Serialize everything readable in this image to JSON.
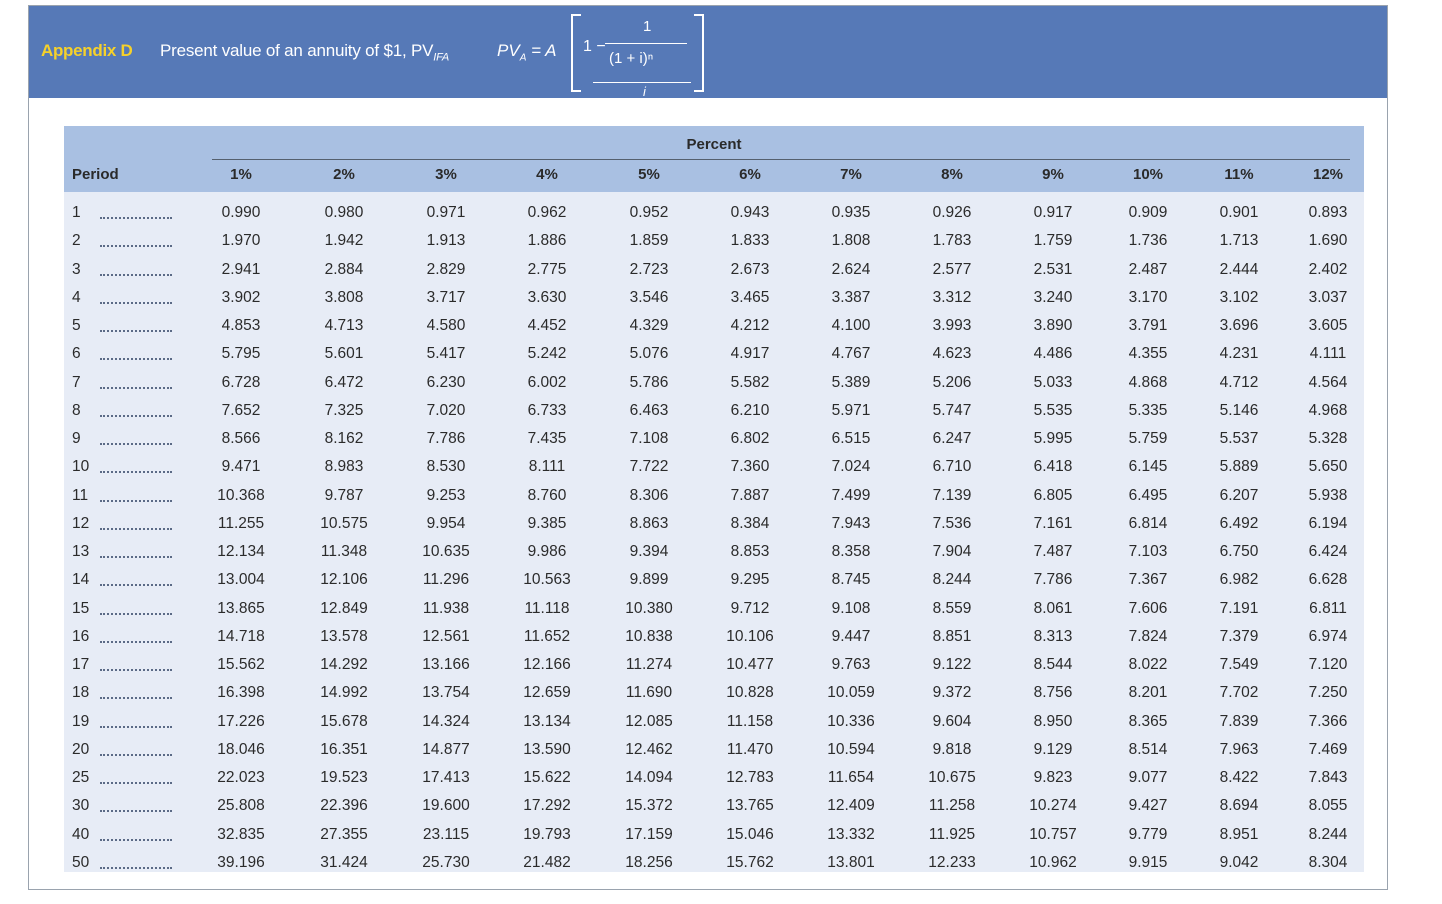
{
  "banner": {
    "label": "Appendix D",
    "title": "Present value of an annuity of $1, PV",
    "title_sub": "IFA",
    "formula": {
      "lhs": "PV",
      "lhs_sub": "A",
      "eq": " = A",
      "one_minus": "1 −",
      "numerator": "1",
      "denominator": "(1 + i)ⁿ",
      "divisor": "i"
    }
  },
  "table": {
    "super_header": "Percent",
    "period_header": "Period",
    "columns": [
      "1%",
      "2%",
      "3%",
      "4%",
      "5%",
      "6%",
      "7%",
      "8%",
      "9%",
      "10%",
      "11%",
      "12%"
    ],
    "rows": [
      {
        "period": "1",
        "values": [
          "0.990",
          "0.980",
          "0.971",
          "0.962",
          "0.952",
          "0.943",
          "0.935",
          "0.926",
          "0.917",
          "0.909",
          "0.901",
          "0.893"
        ]
      },
      {
        "period": "2",
        "values": [
          "1.970",
          "1.942",
          "1.913",
          "1.886",
          "1.859",
          "1.833",
          "1.808",
          "1.783",
          "1.759",
          "1.736",
          "1.713",
          "1.690"
        ]
      },
      {
        "period": "3",
        "values": [
          "2.941",
          "2.884",
          "2.829",
          "2.775",
          "2.723",
          "2.673",
          "2.624",
          "2.577",
          "2.531",
          "2.487",
          "2.444",
          "2.402"
        ]
      },
      {
        "period": "4",
        "values": [
          "3.902",
          "3.808",
          "3.717",
          "3.630",
          "3.546",
          "3.465",
          "3.387",
          "3.312",
          "3.240",
          "3.170",
          "3.102",
          "3.037"
        ]
      },
      {
        "period": "5",
        "values": [
          "4.853",
          "4.713",
          "4.580",
          "4.452",
          "4.329",
          "4.212",
          "4.100",
          "3.993",
          "3.890",
          "3.791",
          "3.696",
          "3.605"
        ]
      },
      {
        "period": "6",
        "values": [
          "5.795",
          "5.601",
          "5.417",
          "5.242",
          "5.076",
          "4.917",
          "4.767",
          "4.623",
          "4.486",
          "4.355",
          "4.231",
          "4.111"
        ]
      },
      {
        "period": "7",
        "values": [
          "6.728",
          "6.472",
          "6.230",
          "6.002",
          "5.786",
          "5.582",
          "5.389",
          "5.206",
          "5.033",
          "4.868",
          "4.712",
          "4.564"
        ]
      },
      {
        "period": "8",
        "values": [
          "7.652",
          "7.325",
          "7.020",
          "6.733",
          "6.463",
          "6.210",
          "5.971",
          "5.747",
          "5.535",
          "5.335",
          "5.146",
          "4.968"
        ]
      },
      {
        "period": "9",
        "values": [
          "8.566",
          "8.162",
          "7.786",
          "7.435",
          "7.108",
          "6.802",
          "6.515",
          "6.247",
          "5.995",
          "5.759",
          "5.537",
          "5.328"
        ]
      },
      {
        "period": "10",
        "values": [
          "9.471",
          "8.983",
          "8.530",
          "8.111",
          "7.722",
          "7.360",
          "7.024",
          "6.710",
          "6.418",
          "6.145",
          "5.889",
          "5.650"
        ]
      },
      {
        "period": "11",
        "values": [
          "10.368",
          "9.787",
          "9.253",
          "8.760",
          "8.306",
          "7.887",
          "7.499",
          "7.139",
          "6.805",
          "6.495",
          "6.207",
          "5.938"
        ]
      },
      {
        "period": "12",
        "values": [
          "11.255",
          "10.575",
          "9.954",
          "9.385",
          "8.863",
          "8.384",
          "7.943",
          "7.536",
          "7.161",
          "6.814",
          "6.492",
          "6.194"
        ]
      },
      {
        "period": "13",
        "values": [
          "12.134",
          "11.348",
          "10.635",
          "9.986",
          "9.394",
          "8.853",
          "8.358",
          "7.904",
          "7.487",
          "7.103",
          "6.750",
          "6.424"
        ]
      },
      {
        "period": "14",
        "values": [
          "13.004",
          "12.106",
          "11.296",
          "10.563",
          "9.899",
          "9.295",
          "8.745",
          "8.244",
          "7.786",
          "7.367",
          "6.982",
          "6.628"
        ]
      },
      {
        "period": "15",
        "values": [
          "13.865",
          "12.849",
          "11.938",
          "11.118",
          "10.380",
          "9.712",
          "9.108",
          "8.559",
          "8.061",
          "7.606",
          "7.191",
          "6.811"
        ]
      },
      {
        "period": "16",
        "values": [
          "14.718",
          "13.578",
          "12.561",
          "11.652",
          "10.838",
          "10.106",
          "9.447",
          "8.851",
          "8.313",
          "7.824",
          "7.379",
          "6.974"
        ]
      },
      {
        "period": "17",
        "values": [
          "15.562",
          "14.292",
          "13.166",
          "12.166",
          "11.274",
          "10.477",
          "9.763",
          "9.122",
          "8.544",
          "8.022",
          "7.549",
          "7.120"
        ]
      },
      {
        "period": "18",
        "values": [
          "16.398",
          "14.992",
          "13.754",
          "12.659",
          "11.690",
          "10.828",
          "10.059",
          "9.372",
          "8.756",
          "8.201",
          "7.702",
          "7.250"
        ]
      },
      {
        "period": "19",
        "values": [
          "17.226",
          "15.678",
          "14.324",
          "13.134",
          "12.085",
          "11.158",
          "10.336",
          "9.604",
          "8.950",
          "8.365",
          "7.839",
          "7.366"
        ]
      },
      {
        "period": "20",
        "values": [
          "18.046",
          "16.351",
          "14.877",
          "13.590",
          "12.462",
          "11.470",
          "10.594",
          "9.818",
          "9.129",
          "8.514",
          "7.963",
          "7.469"
        ]
      },
      {
        "period": "25",
        "values": [
          "22.023",
          "19.523",
          "17.413",
          "15.622",
          "14.094",
          "12.783",
          "11.654",
          "10.675",
          "9.823",
          "9.077",
          "8.422",
          "7.843"
        ]
      },
      {
        "period": "30",
        "values": [
          "25.808",
          "22.396",
          "19.600",
          "17.292",
          "15.372",
          "13.765",
          "12.409",
          "11.258",
          "10.274",
          "9.427",
          "8.694",
          "8.055"
        ]
      },
      {
        "period": "40",
        "values": [
          "32.835",
          "27.355",
          "23.115",
          "19.793",
          "17.159",
          "15.046",
          "13.332",
          "11.925",
          "10.757",
          "9.779",
          "8.951",
          "8.244"
        ]
      },
      {
        "period": "50",
        "values": [
          "39.196",
          "31.424",
          "25.730",
          "21.482",
          "18.256",
          "15.762",
          "13.801",
          "12.233",
          "10.962",
          "9.915",
          "9.042",
          "8.304"
        ]
      }
    ]
  }
}
